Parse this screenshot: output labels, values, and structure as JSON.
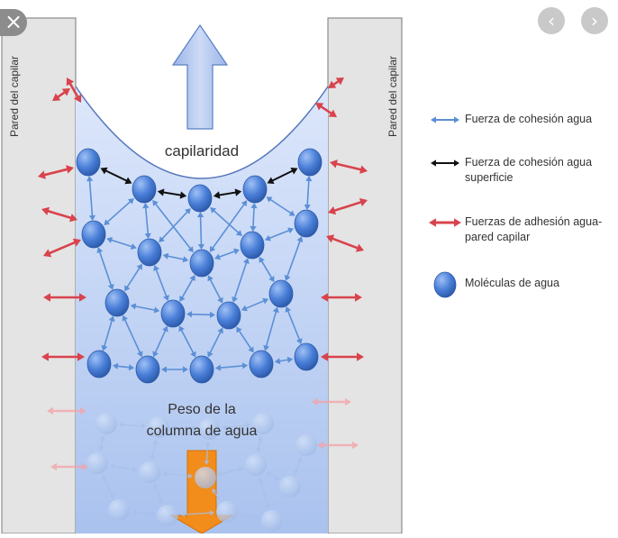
{
  "wall_label_left": "Pared del capilar",
  "wall_label_right": "Pared del capilar",
  "capillarity_label": "capilaridad",
  "weight_label_line1": "Peso de la",
  "weight_label_line2": "columna de agua",
  "legend": [
    {
      "text": "Fuerza de cohesión agua",
      "symbol": "blue-double-arrow",
      "color": "#5b8fd6"
    },
    {
      "text": "Fuerza de cohesión agua superficie",
      "symbol": "black-double-arrow",
      "color": "#111111"
    },
    {
      "text": "Fuerzas de adhesión agua-pared capilar",
      "symbol": "red-double-arrow",
      "color": "#d9434c"
    },
    {
      "text": "Moléculas de agua",
      "symbol": "blue-sphere",
      "color": "#4a7fd8"
    }
  ],
  "controls": {
    "close_icon": "×",
    "prev_icon": "‹",
    "next_icon": "›"
  },
  "colors": {
    "wall": "#e4e4e4",
    "water_top": "#dde7fb",
    "water_bottom": "#a9c2ee",
    "up_arrow": "#b4c8ee",
    "down_arrow": "#f28c1b",
    "molecule": "#4a7fd8"
  }
}
